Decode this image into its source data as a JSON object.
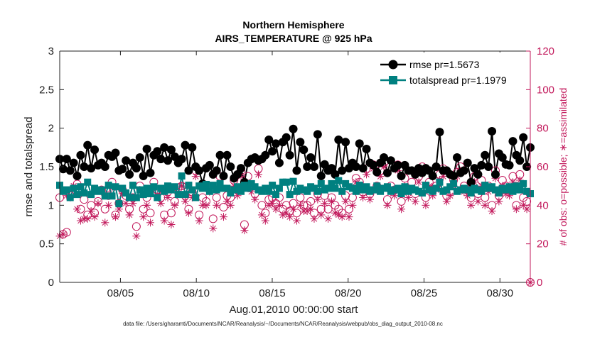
{
  "chart_data": {
    "type": "line",
    "title": "Northern Hemisphere",
    "subtitle": "AIRS_TEMPERATURE @ 925 hPa",
    "xlabel": "Aug.01,2010 00:00:00 start",
    "ylabel": "rmse and totalspread",
    "ylabel_right": "# of obs: o=possible; ∗=assimilated",
    "footnote": "data file: /Users/gharamti/Documents/NCAR/Reanalysis/~/Documents/NCAR/Reanalysis/webpub/obs_diag_output_2010-08.nc",
    "xlim": [
      1,
      32
    ],
    "ylim": [
      0,
      3
    ],
    "ylim_right": [
      0,
      120
    ],
    "x_ticks": [
      5,
      10,
      15,
      20,
      25,
      30
    ],
    "x_tick_labels": [
      "08/05",
      "08/10",
      "08/15",
      "08/20",
      "08/25",
      "08/30"
    ],
    "y_ticks": [
      "0",
      "0.5",
      "1",
      "1.5",
      "2",
      "2.5",
      "3"
    ],
    "y_ticks_right": [
      "0",
      "20",
      "40",
      "60",
      "80",
      "100",
      "120"
    ],
    "legend_position": "top-right",
    "grid": false,
    "colors": {
      "rmse": "#000000",
      "totalspread": "#008080",
      "obs": "#c2185b"
    },
    "series": [
      {
        "name": "rmse pr=1.5673",
        "axis": "left",
        "marker": "filled-circle",
        "values": [
          1.6,
          1.47,
          1.6,
          1.45,
          1.55,
          1.38,
          1.65,
          1.5,
          1.78,
          1.48,
          1.72,
          1.52,
          1.55,
          1.5,
          1.65,
          1.63,
          1.68,
          1.45,
          1.47,
          1.58,
          1.4,
          1.55,
          1.48,
          1.62,
          1.38,
          1.73,
          1.42,
          1.65,
          1.7,
          1.6,
          1.75,
          1.58,
          1.72,
          1.63,
          1.55,
          1.6,
          1.78,
          1.45,
          1.75,
          1.5,
          1.45,
          1.28,
          1.48,
          1.52,
          1.4,
          1.45,
          1.65,
          1.38,
          1.65,
          1.5,
          1.35,
          1.4,
          1.48,
          1.3,
          1.55,
          1.6,
          1.62,
          1.58,
          1.6,
          1.65,
          1.85,
          1.7,
          1.8,
          1.55,
          1.82,
          1.88,
          1.65,
          1.99,
          1.45,
          1.82,
          1.72,
          1.5,
          1.62,
          1.5,
          1.92,
          1.38,
          1.53,
          1.45,
          1.48,
          1.4,
          1.85,
          1.45,
          1.82,
          1.48,
          1.55,
          1.5,
          1.8,
          1.48,
          1.73,
          1.55,
          1.52,
          1.43,
          1.55,
          1.62,
          1.42,
          1.58,
          1.48,
          1.52,
          1.38,
          1.52,
          1.45,
          1.45,
          1.4,
          1.48,
          1.42,
          1.48,
          1.45,
          1.38,
          1.5,
          1.95,
          1.45,
          1.45,
          1.4,
          1.38,
          1.62,
          1.42,
          1.45,
          1.55,
          1.3,
          1.48,
          1.4,
          1.52,
          1.65,
          1.5,
          1.96,
          1.4,
          1.67,
          1.62,
          1.53,
          1.52,
          1.83,
          1.65,
          1.58,
          1.88,
          1.5,
          1.75
        ]
      },
      {
        "name": "totalspread pr=1.1979",
        "axis": "left",
        "marker": "filled-square",
        "values": [
          1.26,
          1.18,
          1.2,
          1.1,
          1.22,
          1.14,
          1.24,
          1.16,
          1.3,
          1.14,
          1.22,
          1.18,
          1.2,
          1.12,
          1.26,
          1.12,
          1.24,
          1.02,
          1.22,
          1.16,
          1.1,
          1.26,
          1.1,
          1.2,
          1.14,
          1.22,
          1.15,
          1.24,
          1.1,
          1.22,
          1.18,
          1.25,
          1.2,
          1.24,
          1.14,
          1.38,
          1.14,
          1.26,
          1.2,
          1.1,
          1.25,
          1.22,
          1.27,
          1.18,
          1.26,
          1.2,
          1.28,
          1.22,
          1.22,
          1.16,
          1.2,
          1.24,
          1.18,
          1.26,
          1.22,
          1.28,
          1.24,
          1.2,
          1.18,
          1.22,
          1.18,
          1.26,
          1.14,
          1.22,
          1.3,
          1.3,
          1.14,
          1.31,
          1.18,
          1.22,
          1.2,
          1.18,
          1.24,
          1.22,
          1.18,
          1.28,
          1.2,
          1.22,
          1.28,
          1.22,
          1.32,
          1.18,
          1.28,
          1.24,
          1.22,
          1.18,
          1.26,
          1.2,
          1.24,
          1.18,
          1.2,
          1.25,
          1.18,
          1.22,
          1.24,
          1.18,
          1.2,
          1.22,
          1.15,
          1.24,
          1.18,
          1.22,
          1.2,
          1.18,
          1.16,
          1.26,
          1.2,
          1.18,
          1.22,
          1.3,
          1.18,
          1.2,
          1.24,
          1.28,
          1.18,
          1.2,
          1.22,
          1.2,
          1.16,
          1.22,
          1.2,
          1.18,
          1.26,
          1.22,
          1.24,
          1.2,
          1.16,
          1.22,
          1.2,
          1.24,
          1.18,
          1.25,
          1.2,
          1.28,
          1.18,
          1.15
        ]
      },
      {
        "name": "possible",
        "axis": "right",
        "marker": "open-circle",
        "values": [
          44,
          25,
          26,
          45,
          46,
          51,
          38,
          43,
          35,
          40,
          36,
          42,
          48,
          38,
          45,
          52,
          35,
          41,
          48,
          45,
          38,
          44,
          29,
          50,
          38,
          44,
          36,
          52,
          48,
          44,
          35,
          47,
          36,
          42,
          49,
          50,
          45,
          38,
          47,
          58,
          35,
          44,
          42,
          50,
          33,
          44,
          55,
          39,
          45,
          44,
          53,
          48,
          58,
          30,
          55,
          50,
          46,
          59,
          40,
          36,
          43,
          44,
          41,
          44,
          38,
          40,
          37,
          41,
          36,
          44,
          40,
          40,
          42,
          36,
          46,
          38,
          45,
          38,
          44,
          40,
          38,
          36,
          45,
          38,
          44,
          54,
          52,
          47,
          59,
          46,
          61,
          50,
          58,
          62,
          43,
          50,
          48,
          61,
          42,
          54,
          48,
          52,
          46,
          55,
          60,
          44,
          52,
          48,
          50,
          56,
          59,
          45,
          47,
          53,
          57,
          60,
          50,
          48,
          44,
          55,
          46,
          53,
          44,
          50,
          40,
          58,
          45,
          53,
          50,
          48,
          55,
          40,
          56,
          44,
          42,
          0
        ]
      },
      {
        "name": "assimilated",
        "axis": "right",
        "marker": "asterisk",
        "values": [
          24,
          25,
          45,
          44,
          50,
          38,
          32,
          33,
          33,
          37,
          34,
          41,
          47,
          31,
          40,
          49,
          34,
          38,
          46,
          41,
          35,
          41,
          24,
          48,
          34,
          40,
          31,
          49,
          45,
          41,
          32,
          44,
          30,
          40,
          46,
          50,
          42,
          36,
          44,
          55,
          32,
          40,
          40,
          47,
          28,
          40,
          50,
          34,
          42,
          40,
          50,
          45,
          55,
          27,
          50,
          47,
          43,
          56,
          35,
          32,
          40,
          41,
          38,
          40,
          35,
          36,
          34,
          38,
          32,
          40,
          37,
          37,
          38,
          33,
          43,
          35,
          41,
          33,
          42,
          36,
          35,
          34,
          42,
          34,
          40,
          52,
          50,
          44,
          56,
          43,
          59,
          48,
          55,
          60,
          40,
          47,
          45,
          58,
          38,
          50,
          44,
          48,
          42,
          52,
          57,
          40,
          50,
          45,
          48,
          53,
          55,
          42,
          45,
          50,
          55,
          58,
          47,
          45,
          40,
          52,
          42,
          50,
          40,
          47,
          37,
          54,
          42,
          50,
          46,
          45,
          52,
          38,
          53,
          40,
          38,
          0
        ]
      }
    ]
  }
}
